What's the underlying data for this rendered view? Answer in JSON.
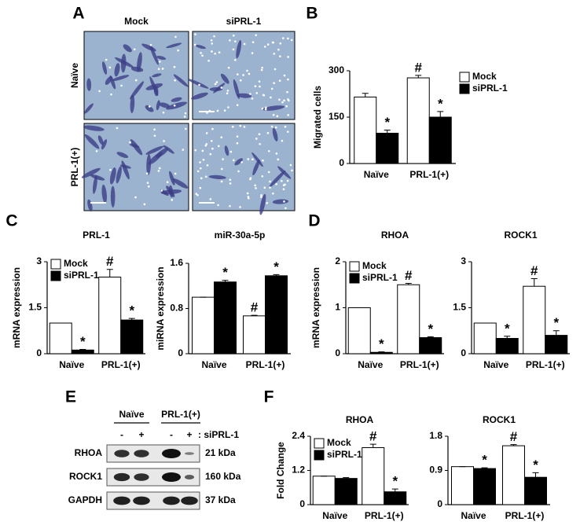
{
  "panel_labels": [
    "A",
    "B",
    "C",
    "D",
    "E",
    "F"
  ],
  "microscopy": {
    "columns": [
      "Mock",
      "siPRL-1"
    ],
    "rows": [
      "Naïve",
      "PRL-1(+)"
    ]
  },
  "blot": {
    "groups": [
      "Naïve",
      "PRL-1(+)"
    ],
    "lanes": [
      "-",
      "+",
      "-",
      "+"
    ],
    "treatment": ": siPRL-1",
    "rows": [
      {
        "name": "RHOA",
        "size": "21 kDa"
      },
      {
        "name": "ROCK1",
        "size": "160 kDa"
      },
      {
        "name": "GAPDH",
        "size": "37 kDa"
      }
    ]
  },
  "chart_data": [
    {
      "type": "bar",
      "ylabel": "Migrated cells",
      "categories": [
        "Naïve",
        "PRL-1(+)"
      ],
      "series": [
        {
          "name": "Mock",
          "color": "#ffffff",
          "values": [
            215,
            277
          ],
          "errors": [
            12,
            8
          ],
          "marks": [
            null,
            "#"
          ]
        },
        {
          "name": "siPRL-1",
          "color": "#000000",
          "values": [
            98,
            150
          ],
          "errors": [
            10,
            18
          ],
          "marks": [
            "*",
            "*"
          ]
        }
      ],
      "ylim": [
        0,
        300
      ],
      "yticks": [
        0,
        150,
        300
      ]
    },
    {
      "type": "bar",
      "title": "PRL-1",
      "ylabel": "mRNA expression",
      "categories": [
        "Naïve",
        "PRL-1(+)"
      ],
      "series": [
        {
          "name": "Mock",
          "color": "#ffffff",
          "values": [
            1.0,
            2.5
          ],
          "errors": [
            0,
            0.25
          ],
          "marks": [
            null,
            "#"
          ]
        },
        {
          "name": "siPRL-1",
          "color": "#000000",
          "values": [
            0.12,
            1.1
          ],
          "errors": [
            0.02,
            0.05
          ],
          "marks": [
            "*",
            "*"
          ]
        }
      ],
      "ylim": [
        0,
        3
      ],
      "yticks": [
        0,
        1.5,
        3
      ]
    },
    {
      "type": "bar",
      "title": "miR-30a-5p",
      "ylabel": "miRNA expression",
      "categories": [
        "Naïve",
        "PRL-1(+)"
      ],
      "series": [
        {
          "color": "#ffffff",
          "values": [
            1.0,
            0.67
          ],
          "errors": [
            0,
            0.01
          ],
          "marks": [
            null,
            "#"
          ]
        },
        {
          "color": "#000000",
          "values": [
            1.27,
            1.38
          ],
          "errors": [
            0.03,
            0.02
          ],
          "marks": [
            "*",
            "*"
          ]
        }
      ],
      "ylim": [
        0,
        1.6
      ],
      "yticks": [
        0,
        0.8,
        1.6
      ]
    },
    {
      "type": "bar",
      "title": "RHOA",
      "ylabel": "mRNA expression",
      "categories": [
        "Naïve",
        "PRL-1(+)"
      ],
      "series": [
        {
          "name": "Mock",
          "color": "#ffffff",
          "values": [
            1.0,
            1.5
          ],
          "errors": [
            0,
            0.03
          ],
          "marks": [
            null,
            "#"
          ]
        },
        {
          "name": "siPRL-1",
          "color": "#000000",
          "values": [
            0.03,
            0.35
          ],
          "errors": [
            0.01,
            0.02
          ],
          "marks": [
            "*",
            "*"
          ]
        }
      ],
      "ylim": [
        0,
        2
      ],
      "yticks": [
        0,
        1,
        2
      ]
    },
    {
      "type": "bar",
      "title": "ROCK1",
      "categories": [
        "Naïve",
        "PRL-1(+)"
      ],
      "series": [
        {
          "color": "#ffffff",
          "values": [
            1.0,
            2.2
          ],
          "errors": [
            0,
            0.25
          ],
          "marks": [
            null,
            "#"
          ]
        },
        {
          "color": "#000000",
          "values": [
            0.5,
            0.6
          ],
          "errors": [
            0.07,
            0.15
          ],
          "marks": [
            "*",
            "*"
          ]
        }
      ],
      "ylim": [
        0,
        3
      ],
      "yticks": [
        0,
        1.5,
        3
      ]
    },
    {
      "type": "bar",
      "title": "RHOA",
      "ylabel": "Fold Change",
      "categories": [
        "Naïve",
        "PRL-1(+)"
      ],
      "series": [
        {
          "name": "Mock",
          "color": "#ffffff",
          "values": [
            1.0,
            2.0
          ],
          "errors": [
            0,
            0.12
          ],
          "marks": [
            null,
            "#"
          ]
        },
        {
          "name": "siPRL-1",
          "color": "#000000",
          "values": [
            0.92,
            0.45
          ],
          "errors": [
            0.03,
            0.1
          ],
          "marks": [
            null,
            "*"
          ]
        }
      ],
      "ylim": [
        0,
        2.4
      ],
      "yticks": [
        0,
        1.2,
        2.4
      ]
    },
    {
      "type": "bar",
      "title": "ROCK1",
      "categories": [
        "Naïve",
        "PRL-1(+)"
      ],
      "series": [
        {
          "color": "#ffffff",
          "values": [
            1.0,
            1.55
          ],
          "errors": [
            0,
            0.03
          ],
          "marks": [
            null,
            "#"
          ]
        },
        {
          "color": "#000000",
          "values": [
            0.95,
            0.72
          ],
          "errors": [
            0.02,
            0.12
          ],
          "marks": [
            "*",
            "*"
          ]
        }
      ],
      "ylim": [
        0,
        1.8
      ],
      "yticks": [
        0,
        0.9,
        1.8
      ]
    }
  ]
}
